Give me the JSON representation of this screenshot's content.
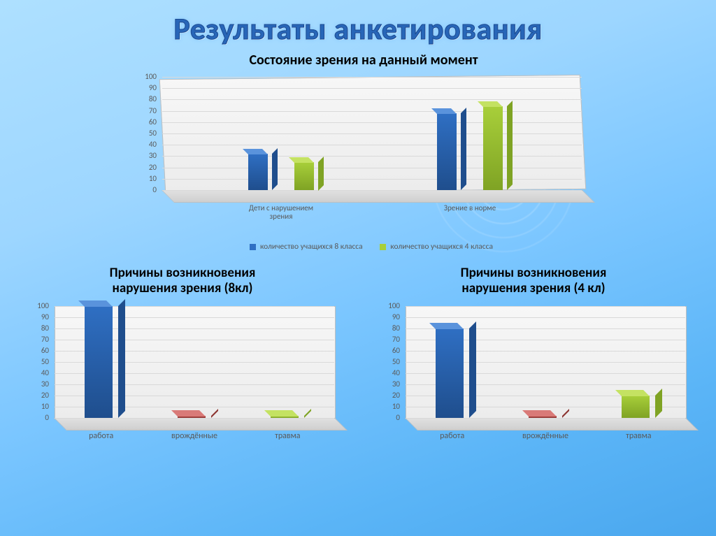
{
  "page_title": "Результаты анкетирования",
  "chart1": {
    "type": "bar",
    "title": "Состояние зрения на данный момент",
    "categories": [
      "Дети с нарушением\nзрения",
      "Зрение в норме"
    ],
    "series": [
      {
        "name": "количество учащихся 8 класса",
        "values": [
          32,
          68
        ],
        "colors": {
          "front": "#2f6fc3",
          "side": "#1f4e8d",
          "top": "#5a93dc"
        }
      },
      {
        "name": "количество учащихся 4 класса",
        "values": [
          25,
          74
        ],
        "colors": {
          "front": "#a8cf3a",
          "side": "#7fa324",
          "top": "#c4e262"
        }
      }
    ],
    "ylim": [
      0,
      100
    ],
    "ytick_step": 10,
    "plot_bg": "#f2f2f2",
    "tick_color": "#595959",
    "grid_color": "#d9d9d9",
    "title_fontsize": 20,
    "tick_fontsize": 11
  },
  "chart2": {
    "type": "bar",
    "title": "Причины возникновения\nнарушения зрения (8кл)",
    "categories": [
      "работа",
      "врождённые",
      "травма"
    ],
    "values": [
      100,
      0,
      0
    ],
    "colors": [
      {
        "front": "#2f6fc3",
        "side": "#1f4e8d",
        "top": "#5a93dc"
      },
      {
        "front": "#c0504d",
        "side": "#8c3431",
        "top": "#d97a78"
      },
      {
        "front": "#a8cf3a",
        "side": "#7fa324",
        "top": "#c4e262"
      }
    ],
    "ylim": [
      0,
      100
    ],
    "ytick_step": 10,
    "plot_bg": "#f2f2f2",
    "tick_color": "#595959",
    "grid_color": "#d9d9d9",
    "title_fontsize": 19,
    "tick_fontsize": 11
  },
  "chart3": {
    "type": "bar",
    "title": "Причины возникновения\nнарушения зрения (4 кл)",
    "categories": [
      "работа",
      "врождённые",
      "травма"
    ],
    "values": [
      80,
      0,
      20
    ],
    "colors": [
      {
        "front": "#2f6fc3",
        "side": "#1f4e8d",
        "top": "#5a93dc"
      },
      {
        "front": "#c0504d",
        "side": "#8c3431",
        "top": "#d97a78"
      },
      {
        "front": "#a8cf3a",
        "side": "#7fa324",
        "top": "#c4e262"
      }
    ],
    "ylim": [
      0,
      100
    ],
    "ytick_step": 10,
    "plot_bg": "#f2f2f2",
    "tick_color": "#595959",
    "grid_color": "#d9d9d9",
    "title_fontsize": 19,
    "tick_fontsize": 11
  }
}
